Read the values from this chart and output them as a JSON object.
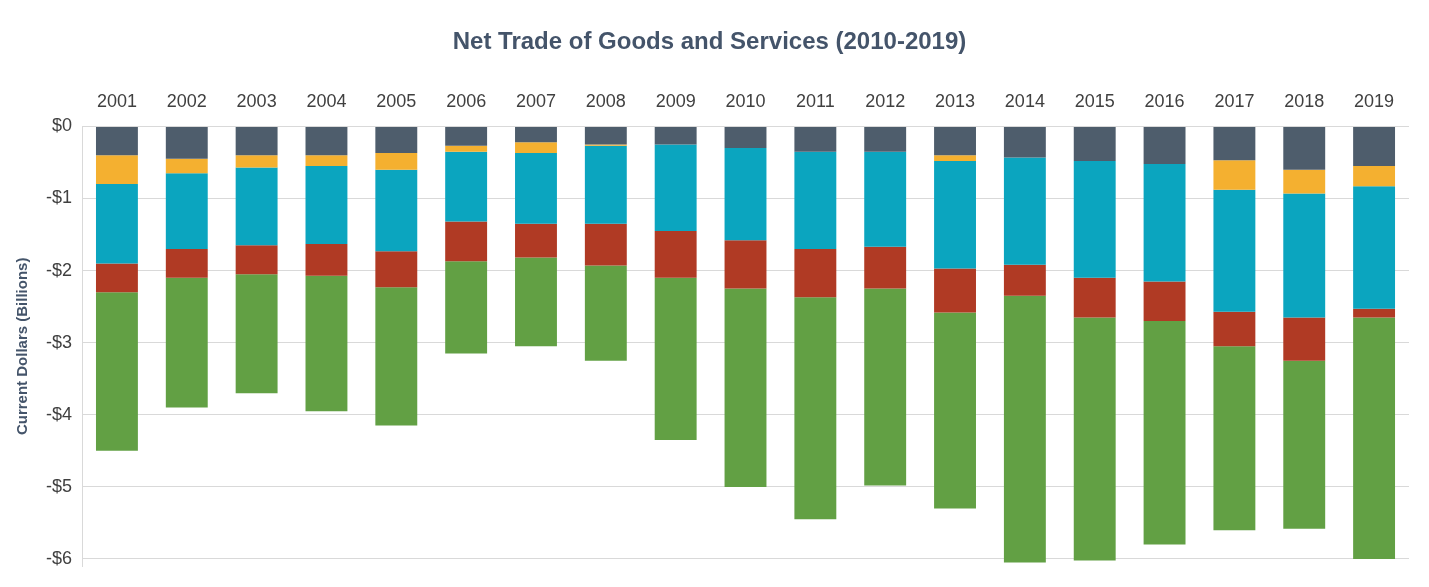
{
  "chart_data": {
    "type": "bar",
    "title": "Net Trade of Goods and Services (2010-2019)",
    "ylabel": "Current Dollars (Billions)",
    "stacked": true,
    "grid": "y",
    "legend": false,
    "categories": [
      "2001",
      "2002",
      "2003",
      "2004",
      "2005",
      "2006",
      "2007",
      "2008",
      "2009",
      "2010",
      "2011",
      "2012",
      "2013",
      "2014",
      "2015",
      "2016",
      "2017",
      "2018",
      "2019"
    ],
    "series": [
      {
        "color": "#4e5d6c",
        "values": [
          -0.4,
          -0.45,
          -0.4,
          -0.4,
          -0.37,
          -0.27,
          -0.22,
          -0.25,
          -0.25,
          -0.3,
          -0.35,
          -0.35,
          -0.4,
          -0.43,
          -0.48,
          -0.52,
          -0.47,
          -0.6,
          -0.55
        ]
      },
      {
        "color": "#f4b030",
        "values": [
          -0.4,
          -0.2,
          -0.17,
          -0.15,
          -0.23,
          -0.08,
          -0.15,
          -0.02,
          0,
          0,
          0,
          0,
          -0.08,
          0,
          0,
          0,
          -0.41,
          -0.33,
          -0.28
        ]
      },
      {
        "color": "#0ba5bf",
        "values": [
          -1.1,
          -1.05,
          -1.08,
          -1.08,
          -1.13,
          -0.97,
          -0.98,
          -1.08,
          -1.2,
          -1.28,
          -1.35,
          -1.32,
          -1.49,
          -1.49,
          -1.62,
          -1.63,
          -1.69,
          -1.72,
          -1.7
        ]
      },
      {
        "color": "#b03a24",
        "values": [
          -0.4,
          -0.4,
          -0.4,
          -0.44,
          -0.5,
          -0.55,
          -0.47,
          -0.58,
          -0.65,
          -0.67,
          -0.67,
          -0.58,
          -0.61,
          -0.43,
          -0.55,
          -0.55,
          -0.48,
          -0.6,
          -0.12
        ]
      },
      {
        "color": "#62a044",
        "values": [
          -2.2,
          -1.8,
          -1.65,
          -1.88,
          -1.92,
          -1.28,
          -1.23,
          -1.32,
          -2.25,
          -2.75,
          -3.08,
          -2.73,
          -2.72,
          -3.7,
          -3.37,
          -3.1,
          -2.55,
          -2.33,
          -3.35
        ]
      }
    ],
    "ylim": [
      -6.1,
      0
    ],
    "yticks": [
      {
        "value": 0,
        "label": "$0"
      },
      {
        "value": -1,
        "label": "-$1"
      },
      {
        "value": -2,
        "label": "-$2"
      },
      {
        "value": -3,
        "label": "-$3"
      },
      {
        "value": -4,
        "label": "-$4"
      },
      {
        "value": -5,
        "label": "-$5"
      },
      {
        "value": -6,
        "label": "-$6"
      }
    ]
  }
}
